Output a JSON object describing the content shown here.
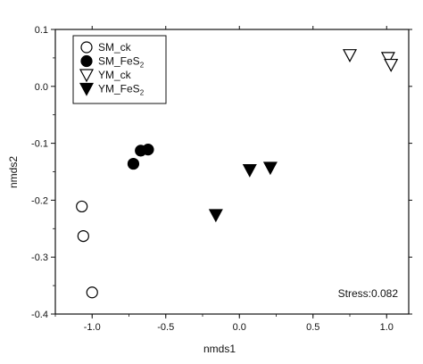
{
  "chart_data": {
    "type": "scatter",
    "xlabel": "nmds1",
    "ylabel": "nmds2",
    "xlim": [
      -1.25,
      1.15
    ],
    "ylim": [
      -0.4,
      0.1
    ],
    "xticks": [
      -1.0,
      -0.5,
      0.0,
      0.5,
      1.0
    ],
    "xtick_labels": [
      "-1.0",
      "-0.5",
      "0.0",
      "0.5",
      "1.0"
    ],
    "yticks": [
      -0.4,
      -0.3,
      -0.2,
      -0.1,
      0.0,
      0.1
    ],
    "ytick_labels": [
      "-0.4",
      "-0.3",
      "-0.2",
      "-0.1",
      "0.0",
      "0.1"
    ],
    "legend_position": "top-left",
    "grid": false,
    "annotation": "Stress:0.082",
    "series": [
      {
        "name": "SM_ck",
        "label_main": "SM_ck",
        "label_sub": "",
        "marker": "circle-open",
        "points": [
          [
            -1.07,
            -0.211
          ],
          [
            -1.06,
            -0.263
          ],
          [
            -1.0,
            -0.362
          ]
        ]
      },
      {
        "name": "SM_FeS2",
        "label_main": "SM_FeS",
        "label_sub": "2",
        "marker": "circle-filled",
        "points": [
          [
            -0.72,
            -0.136
          ],
          [
            -0.67,
            -0.113
          ],
          [
            -0.62,
            -0.111
          ]
        ]
      },
      {
        "name": "YM_ck",
        "label_main": "YM_ck",
        "label_sub": "",
        "marker": "triangle-down-open",
        "points": [
          [
            0.75,
            0.055
          ],
          [
            1.01,
            0.05
          ],
          [
            1.03,
            0.038
          ]
        ]
      },
      {
        "name": "YM_FeS2",
        "label_main": "YM_FeS",
        "label_sub": "2",
        "marker": "triangle-down-filled",
        "points": [
          [
            -0.16,
            -0.226
          ],
          [
            0.07,
            -0.147
          ],
          [
            0.21,
            -0.143
          ]
        ]
      }
    ]
  }
}
